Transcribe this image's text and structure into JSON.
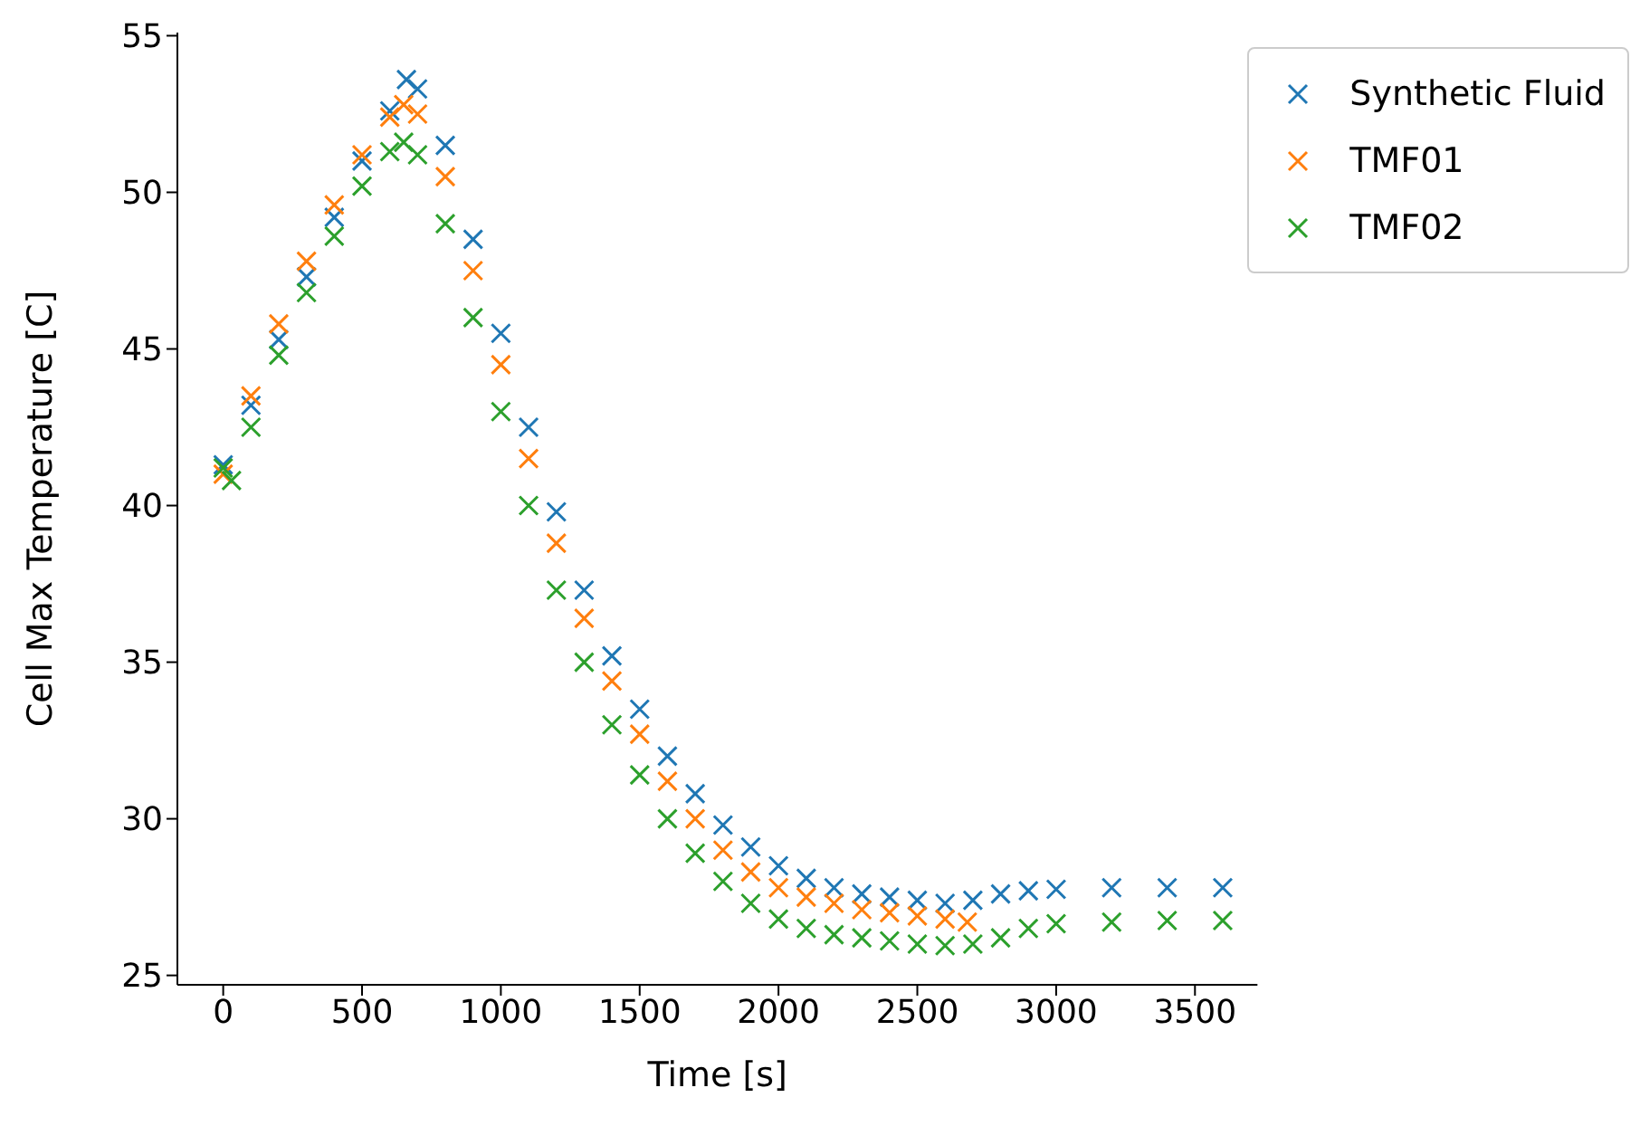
{
  "chart_data": {
    "type": "scatter",
    "xlabel": "Time [s]",
    "ylabel": "Cell Max Temperature [C]",
    "xlim": [
      -165,
      3725
    ],
    "ylim": [
      24.7,
      55.1
    ],
    "xticks": [
      0,
      500,
      1000,
      1500,
      2000,
      2500,
      3000,
      3500
    ],
    "yticks": [
      25,
      30,
      35,
      40,
      45,
      50,
      55
    ],
    "grid": false,
    "legend": "top right",
    "marker": "cross",
    "series": [
      {
        "name": "Synthetic Fluid",
        "color": "#1f77b4",
        "x": [
          0,
          100,
          200,
          300,
          400,
          500,
          600,
          660,
          700,
          800,
          900,
          1000,
          1100,
          1200,
          1300,
          1400,
          1500,
          1600,
          1700,
          1800,
          1900,
          2000,
          2100,
          2200,
          2300,
          2400,
          2500,
          2600,
          2700,
          2800,
          2900,
          3000,
          3200,
          3400,
          3600
        ],
        "values": [
          41.3,
          43.2,
          45.3,
          47.3,
          49.2,
          51,
          52.6,
          53.6,
          53.3,
          51.5,
          48.5,
          45.5,
          42.5,
          39.8,
          37.3,
          35.2,
          33.5,
          32,
          30.8,
          29.8,
          29.1,
          28.5,
          28.1,
          27.8,
          27.6,
          27.5,
          27.4,
          27.3,
          27.4,
          27.6,
          27.7,
          27.75,
          27.8,
          27.8,
          27.8
        ]
      },
      {
        "name": "TMF01",
        "color": "#ff7f0e",
        "x": [
          0,
          100,
          200,
          300,
          400,
          500,
          600,
          650,
          700,
          800,
          900,
          1000,
          1100,
          1200,
          1300,
          1400,
          1500,
          1600,
          1700,
          1800,
          1900,
          2000,
          2100,
          2200,
          2300,
          2400,
          2500,
          2600,
          2680
        ],
        "values": [
          41,
          43.5,
          45.8,
          47.8,
          49.6,
          51.2,
          52.4,
          52.8,
          52.5,
          50.5,
          47.5,
          44.5,
          41.5,
          38.8,
          36.4,
          34.4,
          32.7,
          31.2,
          30,
          29,
          28.3,
          27.8,
          27.5,
          27.3,
          27.1,
          27,
          26.9,
          26.8,
          26.7
        ]
      },
      {
        "name": "TMF02",
        "color": "#2ca02c",
        "x": [
          0,
          30,
          100,
          200,
          300,
          400,
          500,
          600,
          650,
          700,
          800,
          900,
          1000,
          1100,
          1200,
          1300,
          1400,
          1500,
          1600,
          1700,
          1800,
          1900,
          2000,
          2100,
          2200,
          2300,
          2400,
          2500,
          2600,
          2700,
          2800,
          2900,
          3000,
          3200,
          3400,
          3600
        ],
        "values": [
          41.2,
          40.8,
          42.5,
          44.8,
          46.8,
          48.6,
          50.2,
          51.3,
          51.6,
          51.2,
          49,
          46,
          43,
          40,
          37.3,
          35,
          33,
          31.4,
          30,
          28.9,
          28,
          27.3,
          26.8,
          26.5,
          26.3,
          26.2,
          26.1,
          26,
          25.95,
          26,
          26.2,
          26.5,
          26.65,
          26.7,
          26.75,
          26.75
        ]
      }
    ]
  }
}
